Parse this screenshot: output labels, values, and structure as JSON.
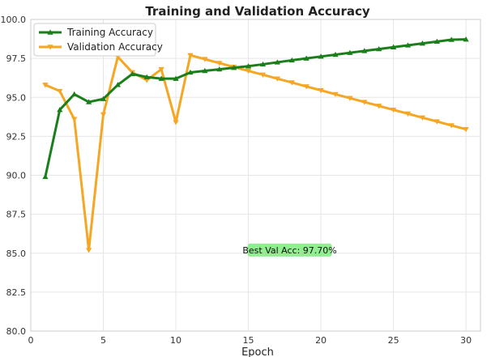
{
  "chart_data": {
    "type": "line",
    "title": "Training and Validation Accuracy",
    "xlabel": "Epoch",
    "ylabel": "",
    "xlim": [
      0,
      31
    ],
    "ylim": [
      80.0,
      100.0
    ],
    "x_ticks": [
      0,
      5,
      10,
      15,
      20,
      25,
      30
    ],
    "y_ticks": [
      80.0,
      82.5,
      85.0,
      87.5,
      90.0,
      92.5,
      95.0,
      97.5,
      100.0
    ],
    "y_tick_labels": [
      "80.0",
      "82.5",
      "85.0",
      "87.5",
      "90.0",
      "92.5",
      "95.0",
      "97.5",
      "100.0"
    ],
    "grid": true,
    "legend_position": "top-left",
    "x": [
      1,
      2,
      3,
      4,
      5,
      6,
      7,
      8,
      9,
      10,
      11,
      12,
      13,
      14,
      15,
      16,
      17,
      18,
      19,
      20,
      21,
      22,
      23,
      24,
      25,
      26,
      27,
      28,
      29,
      30
    ],
    "series": [
      {
        "name": "Training Accuracy",
        "color": "#1a7f1a",
        "marker": "triangle-up",
        "values": [
          89.9,
          94.2,
          95.2,
          94.7,
          94.9,
          95.8,
          96.5,
          96.3,
          96.2,
          96.2,
          96.6,
          96.7,
          96.8,
          96.9,
          97.0,
          97.12,
          97.25,
          97.38,
          97.5,
          97.62,
          97.74,
          97.86,
          97.98,
          98.1,
          98.22,
          98.34,
          98.46,
          98.58,
          98.7,
          98.72
        ]
      },
      {
        "name": "Validation Accuracy",
        "color": "#f5a623",
        "marker": "triangle-down",
        "values": [
          95.8,
          95.4,
          93.6,
          85.2,
          93.9,
          97.6,
          96.6,
          96.1,
          96.8,
          93.4,
          97.7,
          97.45,
          97.2,
          96.95,
          96.7,
          96.45,
          96.2,
          95.95,
          95.7,
          95.45,
          95.2,
          94.95,
          94.7,
          94.45,
          94.2,
          93.95,
          93.7,
          93.45,
          93.2,
          92.95
        ]
      }
    ],
    "annotation": {
      "text": "Best Val Acc: 97.70%",
      "x": 15,
      "y": 85.2,
      "background": "#90ee90"
    }
  }
}
